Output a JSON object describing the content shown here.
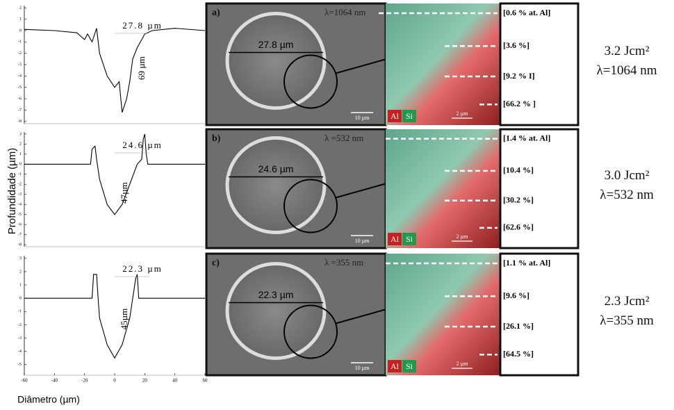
{
  "chart_data": [
    {
      "type": "line",
      "xlim": [
        -60,
        60
      ],
      "ylim": [
        -8.2,
        2.2
      ],
      "yticks": [
        2,
        1,
        0,
        -1,
        -2,
        -3,
        -4,
        -5,
        -6,
        -7,
        -8
      ],
      "annotations": [
        "27.8 µm",
        "69 µm"
      ],
      "x": [
        -60,
        -40,
        -25,
        -20,
        -18,
        -15,
        -12,
        -10,
        -5,
        0,
        3,
        5,
        8,
        10,
        12,
        15,
        18,
        20,
        25,
        40,
        60
      ],
      "series": [
        {
          "color": "#000000",
          "values": [
            0.1,
            0,
            -0.2,
            -0.8,
            -0.3,
            -1,
            0.2,
            -2,
            -4,
            -5,
            -4.5,
            -7.2,
            -6,
            -4.5,
            -2.5,
            -1.5,
            -0.8,
            -0.3,
            0,
            0.2,
            0
          ]
        }
      ]
    },
    {
      "type": "line",
      "xlim": [
        -60,
        60
      ],
      "ylim": [
        -8.2,
        3.2
      ],
      "yticks": [
        3,
        2,
        1,
        0,
        -1,
        -2,
        -3,
        -4,
        -5,
        -6,
        -7,
        -8
      ],
      "annotations": [
        "24.6 µm",
        "47µm"
      ],
      "x": [
        -60,
        -16,
        -15,
        -13,
        -12,
        -10,
        -5,
        0,
        5,
        10,
        15,
        18,
        19,
        20,
        21,
        22,
        60
      ],
      "series": [
        {
          "color": "#000000",
          "values": [
            0,
            0,
            1.5,
            1.8,
            0.5,
            -1.5,
            -4,
            -5,
            -4,
            -2,
            0,
            0.5,
            2.5,
            3,
            1,
            0,
            0
          ]
        }
      ]
    },
    {
      "type": "line",
      "xlim": [
        -60,
        60
      ],
      "ylim": [
        -5.8,
        3.2
      ],
      "yticks": [
        3,
        2,
        1,
        0,
        -1,
        -2,
        -3,
        -4,
        -5
      ],
      "xticks": [
        -60,
        -40,
        -20,
        0,
        20,
        40,
        60
      ],
      "annotations": [
        "22.3 µm",
        "45µm"
      ],
      "x": [
        -60,
        -15,
        -14,
        -12,
        -11,
        -10,
        -5,
        0,
        5,
        10,
        12,
        14,
        15,
        16,
        60
      ],
      "series": [
        {
          "color": "#000000",
          "values": [
            0,
            0,
            1.8,
            1.8,
            0,
            -1.5,
            -3.5,
            -4.5,
            -3.5,
            -1.5,
            0,
            1.5,
            1.8,
            0,
            0
          ]
        }
      ]
    }
  ],
  "y_label": "Profundidade (µm)",
  "x_label": "Diâmetro (µm)",
  "panels": [
    {
      "label": "a)",
      "wavelength": "λ=1064 nm",
      "diameter": "27.8 µm",
      "scale_sem": "10 µm",
      "scale_eds": "2 µm",
      "al": "Al",
      "si": "Si",
      "compositions": [
        "[0.6 % at. Al]",
        "[3.6 %]",
        "[9.2 % I]",
        "[66.2 % ]"
      ],
      "fluence": "3.2 Jcm²",
      "lambda": "λ=1064 nm"
    },
    {
      "label": "b)",
      "wavelength": "λ =532 nm",
      "diameter": "24.6 µm",
      "scale_sem": "10 µm",
      "scale_eds": "2 µm",
      "al": "Al",
      "si": "Si",
      "compositions": [
        "[1.4 %  at. Al]",
        "[10.4 %]",
        "[30.2 %]",
        "[62.6 %]"
      ],
      "fluence": "3.0 Jcm²",
      "lambda": "λ=532 nm"
    },
    {
      "label": "c)",
      "wavelength": "λ =355 nm",
      "diameter": "22.3 µm",
      "scale_sem": "10 µm",
      "scale_eds": "2 µm",
      "al": "Al",
      "si": "Si",
      "compositions": [
        "[1.1 % at. Al]",
        "[9.6 %]",
        "[26.1 %]",
        "[64.5 %]"
      ],
      "fluence": "2.3 Jcm²",
      "lambda": "λ=355 nm"
    }
  ]
}
